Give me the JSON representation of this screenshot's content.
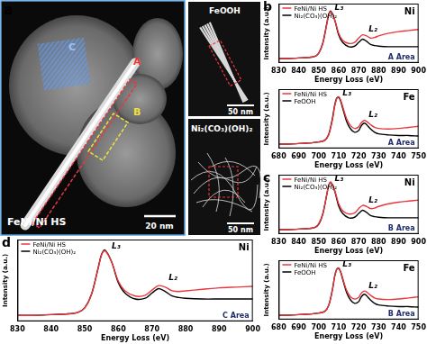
{
  "image_panel": {
    "panel": "a",
    "main_label": "FeNi/Ni HS",
    "region_labels": [
      "A",
      "B",
      "C"
    ],
    "scale_bar": "20 nm",
    "insets": [
      {
        "label": "FeOOH",
        "scale_bar": "50 nm"
      },
      {
        "label": "Ni₂(CO₃)(OH)₂",
        "scale_bar": "50 nm"
      }
    ]
  },
  "chart_data": [
    {
      "type": "line",
      "panel": "b",
      "element": "Ni",
      "area": "A Area",
      "xlabel": "Energy Loss (eV)",
      "ylabel": "Intensity (a.u.)",
      "x": [
        830,
        835,
        840,
        845,
        848,
        850,
        852,
        854,
        855,
        856,
        858,
        860,
        862,
        865,
        868,
        870,
        872,
        874,
        876,
        878,
        880,
        885,
        890,
        895,
        900
      ],
      "xlim": [
        830,
        900
      ],
      "xticks": [
        830,
        840,
        850,
        860,
        870,
        880,
        890,
        900
      ],
      "ylim": [
        0,
        1.1
      ],
      "tick_labels": "x",
      "grid": false,
      "legend": "upper left",
      "annotations": [
        {
          "text": "L₃",
          "x": 858,
          "y": 0.98
        },
        {
          "text": "L₂",
          "x": 875,
          "y": 0.58
        }
      ],
      "series": [
        {
          "name": "FeNi/Ni HS",
          "color": "#e8383d",
          "values": [
            0.08,
            0.08,
            0.09,
            0.1,
            0.12,
            0.18,
            0.35,
            0.7,
            0.88,
            0.95,
            0.8,
            0.55,
            0.42,
            0.36,
            0.38,
            0.46,
            0.52,
            0.5,
            0.46,
            0.47,
            0.5,
            0.55,
            0.58,
            0.6,
            0.62
          ]
        },
        {
          "name": "Ni₂(CO₃)(OH)₂",
          "color": "#000000",
          "values": [
            0.08,
            0.08,
            0.09,
            0.1,
            0.12,
            0.18,
            0.36,
            0.72,
            0.9,
            0.96,
            0.8,
            0.52,
            0.38,
            0.3,
            0.31,
            0.38,
            0.44,
            0.4,
            0.34,
            0.32,
            0.31,
            0.3,
            0.3,
            0.3,
            0.3
          ]
        }
      ]
    },
    {
      "type": "line",
      "element": "Fe",
      "area": "A Area",
      "xlabel": "Energy Loss (eV)",
      "ylabel": "Intensity (a.u.)",
      "x": [
        680,
        685,
        690,
        695,
        700,
        703,
        705,
        707,
        708,
        709,
        710,
        711,
        712,
        714,
        716,
        718,
        720,
        721,
        722,
        723,
        724,
        726,
        728,
        730,
        735,
        740,
        745,
        750
      ],
      "xlim": [
        680,
        750
      ],
      "xticks": [
        680,
        690,
        700,
        710,
        720,
        730,
        740,
        750
      ],
      "ylim": [
        0,
        1.1
      ],
      "tick_labels": "x",
      "grid": false,
      "legend": "upper left",
      "annotations": [
        {
          "text": "L₃",
          "x": 712,
          "y": 0.98
        },
        {
          "text": "L₂",
          "x": 725,
          "y": 0.58
        }
      ],
      "series": [
        {
          "name": "FeNi/Ni HS",
          "color": "#e8383d",
          "values": [
            0.08,
            0.08,
            0.09,
            0.1,
            0.12,
            0.15,
            0.25,
            0.55,
            0.78,
            0.92,
            0.96,
            0.9,
            0.78,
            0.55,
            0.42,
            0.37,
            0.4,
            0.46,
            0.5,
            0.52,
            0.5,
            0.44,
            0.39,
            0.37,
            0.36,
            0.37,
            0.39,
            0.41
          ]
        },
        {
          "name": "FeOOH",
          "color": "#000000",
          "values": [
            0.08,
            0.08,
            0.09,
            0.1,
            0.12,
            0.15,
            0.26,
            0.58,
            0.8,
            0.93,
            0.95,
            0.88,
            0.75,
            0.5,
            0.36,
            0.3,
            0.33,
            0.4,
            0.45,
            0.47,
            0.44,
            0.36,
            0.3,
            0.27,
            0.25,
            0.24,
            0.24,
            0.23
          ]
        }
      ]
    },
    {
      "type": "line",
      "panel": "c",
      "element": "Ni",
      "area": "B Area",
      "xlabel": "Energy Loss (eV)",
      "ylabel": "Intensity (a.u.)",
      "x": [
        830,
        835,
        840,
        845,
        848,
        850,
        852,
        854,
        855,
        856,
        858,
        860,
        862,
        865,
        868,
        870,
        872,
        874,
        876,
        878,
        880,
        885,
        890,
        895,
        900
      ],
      "xlim": [
        830,
        900
      ],
      "xticks": [
        830,
        840,
        850,
        860,
        870,
        880,
        890,
        900
      ],
      "ylim": [
        0,
        1.1
      ],
      "tick_labels": "x",
      "grid": false,
      "legend": "upper left",
      "annotations": [
        {
          "text": "L₃",
          "x": 858,
          "y": 0.98
        },
        {
          "text": "L₂",
          "x": 875,
          "y": 0.58
        }
      ],
      "series": [
        {
          "name": "FeNi/Ni HS",
          "color": "#e8383d",
          "values": [
            0.08,
            0.08,
            0.09,
            0.1,
            0.12,
            0.19,
            0.37,
            0.72,
            0.9,
            0.96,
            0.81,
            0.56,
            0.43,
            0.37,
            0.39,
            0.47,
            0.53,
            0.51,
            0.47,
            0.48,
            0.51,
            0.56,
            0.59,
            0.61,
            0.63
          ]
        },
        {
          "name": "Ni₂(CO₃)(OH)₂",
          "color": "#000000",
          "values": [
            0.08,
            0.08,
            0.09,
            0.1,
            0.12,
            0.18,
            0.36,
            0.72,
            0.9,
            0.96,
            0.8,
            0.52,
            0.38,
            0.3,
            0.31,
            0.38,
            0.44,
            0.4,
            0.34,
            0.32,
            0.31,
            0.3,
            0.3,
            0.3,
            0.3
          ]
        }
      ]
    },
    {
      "type": "line",
      "element": "Fe",
      "area": "B Area",
      "xlabel": "Energy Loss (eV)",
      "ylabel": "Intensity (a.u.)",
      "x": [
        680,
        685,
        690,
        695,
        700,
        703,
        705,
        707,
        708,
        709,
        710,
        711,
        712,
        714,
        716,
        718,
        720,
        721,
        722,
        723,
        724,
        726,
        728,
        730,
        735,
        740,
        745,
        750
      ],
      "xlim": [
        680,
        750
      ],
      "xticks": [
        680,
        690,
        700,
        710,
        720,
        730,
        740,
        750
      ],
      "ylim": [
        0,
        1.1
      ],
      "tick_labels": "x",
      "grid": false,
      "legend": "upper left",
      "annotations": [
        {
          "text": "L₃",
          "x": 712,
          "y": 0.98
        },
        {
          "text": "L₂",
          "x": 725,
          "y": 0.58
        }
      ],
      "series": [
        {
          "name": "FeNi/Ni HS",
          "color": "#e8383d",
          "values": [
            0.08,
            0.08,
            0.09,
            0.1,
            0.12,
            0.15,
            0.26,
            0.57,
            0.8,
            0.93,
            0.96,
            0.89,
            0.77,
            0.54,
            0.42,
            0.38,
            0.41,
            0.47,
            0.51,
            0.53,
            0.51,
            0.45,
            0.4,
            0.38,
            0.37,
            0.38,
            0.4,
            0.42
          ]
        },
        {
          "name": "FeOOH",
          "color": "#000000",
          "values": [
            0.08,
            0.08,
            0.09,
            0.1,
            0.12,
            0.15,
            0.26,
            0.58,
            0.8,
            0.93,
            0.95,
            0.88,
            0.75,
            0.5,
            0.36,
            0.3,
            0.33,
            0.4,
            0.45,
            0.47,
            0.44,
            0.36,
            0.3,
            0.27,
            0.25,
            0.24,
            0.24,
            0.23
          ]
        }
      ]
    },
    {
      "type": "line",
      "panel": "d",
      "element": "Ni",
      "area": "C Area",
      "xlabel": "Energy Loss (eV)",
      "ylabel": "Intensity (a.u.)",
      "x": [
        830,
        835,
        840,
        845,
        848,
        850,
        852,
        854,
        855,
        856,
        858,
        860,
        862,
        865,
        868,
        870,
        872,
        874,
        876,
        878,
        880,
        885,
        890,
        895,
        900
      ],
      "xlim": [
        830,
        900
      ],
      "xticks": [
        830,
        840,
        850,
        860,
        870,
        880,
        890,
        900
      ],
      "ylim": [
        0,
        1.1
      ],
      "tick_labels": "x",
      "grid": false,
      "legend": "upper left",
      "annotations": [
        {
          "text": "L₃",
          "x": 858,
          "y": 0.98
        },
        {
          "text": "L₂",
          "x": 875,
          "y": 0.56
        }
      ],
      "series": [
        {
          "name": "FeNi/Ni HS",
          "color": "#e8383d",
          "values": [
            0.08,
            0.08,
            0.09,
            0.1,
            0.12,
            0.18,
            0.36,
            0.71,
            0.89,
            0.95,
            0.8,
            0.54,
            0.41,
            0.34,
            0.35,
            0.42,
            0.48,
            0.46,
            0.41,
            0.4,
            0.41,
            0.43,
            0.45,
            0.46,
            0.47
          ]
        },
        {
          "name": "Ni₂(CO₃)(OH)₂",
          "color": "#000000",
          "values": [
            0.08,
            0.08,
            0.09,
            0.1,
            0.12,
            0.18,
            0.36,
            0.72,
            0.9,
            0.96,
            0.8,
            0.52,
            0.38,
            0.3,
            0.31,
            0.38,
            0.44,
            0.4,
            0.34,
            0.32,
            0.31,
            0.3,
            0.3,
            0.3,
            0.3
          ]
        }
      ]
    }
  ]
}
